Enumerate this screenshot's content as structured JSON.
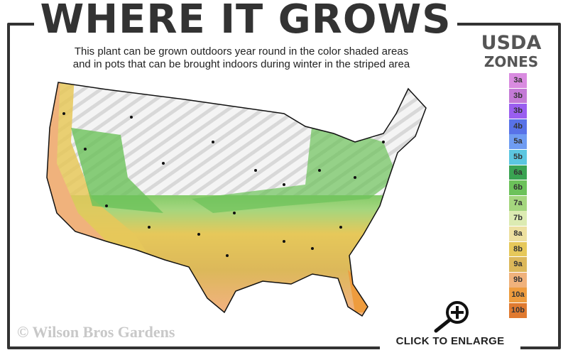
{
  "title": "WHERE IT GROWS",
  "subtitle_line1": "This plant can be grown outdoors year round in the color shaded areas",
  "subtitle_line2": "and in pots that can be brought indoors during winter in the striped area",
  "legend": {
    "title_line1": "USDA",
    "title_line2": "ZONES",
    "zones": [
      {
        "label": "3a",
        "color": "#d98be0"
      },
      {
        "label": "3b",
        "color": "#c47ad6"
      },
      {
        "label": "3b",
        "color": "#9a5ef0"
      },
      {
        "label": "4b",
        "color": "#5872e8"
      },
      {
        "label": "5a",
        "color": "#6f9cf2"
      },
      {
        "label": "5b",
        "color": "#5cc6e0"
      },
      {
        "label": "6a",
        "color": "#3aa352"
      },
      {
        "label": "6b",
        "color": "#6cc25a"
      },
      {
        "label": "7a",
        "color": "#a4d67e"
      },
      {
        "label": "7b",
        "color": "#dcebb2"
      },
      {
        "label": "8a",
        "color": "#ede0a0"
      },
      {
        "label": "8b",
        "color": "#e6c85a"
      },
      {
        "label": "9a",
        "color": "#dcb85a"
      },
      {
        "label": "9b",
        "color": "#f0b27c"
      },
      {
        "label": "10a",
        "color": "#ee9c3e"
      },
      {
        "label": "10b",
        "color": "#e07a30"
      }
    ]
  },
  "watermark": "© Wilson Bros Gardens",
  "enlarge_label": "CLICK TO ENLARGE",
  "icons": {
    "enlarge": "magnifier-plus-icon"
  }
}
